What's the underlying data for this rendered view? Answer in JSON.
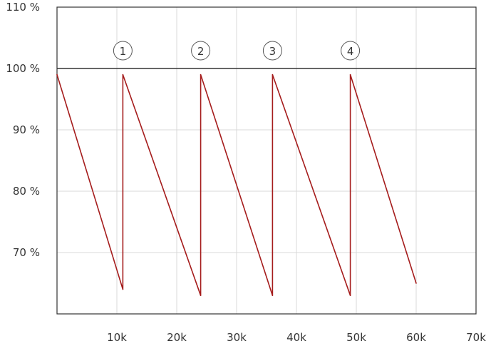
{
  "chart_data": {
    "type": "line",
    "title": "",
    "xlabel": "",
    "ylabel": "",
    "xlim": [
      0,
      70000
    ],
    "ylim": [
      60,
      110
    ],
    "x_ticks": [
      {
        "value": 10000,
        "label": "10k"
      },
      {
        "value": 20000,
        "label": "20k"
      },
      {
        "value": 30000,
        "label": "30k"
      },
      {
        "value": 40000,
        "label": "40k"
      },
      {
        "value": 50000,
        "label": "50k"
      },
      {
        "value": 60000,
        "label": "60k"
      },
      {
        "value": 70000,
        "label": "70k"
      }
    ],
    "y_ticks": [
      {
        "value": 70,
        "label": "70 %"
      },
      {
        "value": 80,
        "label": "80 %"
      },
      {
        "value": 90,
        "label": "90 %"
      },
      {
        "value": 100,
        "label": "100 %"
      },
      {
        "value": 110,
        "label": "110 %"
      }
    ],
    "grid": true,
    "reference_line": {
      "y": 100
    },
    "series": [
      {
        "color": "#a51c1c",
        "points": [
          {
            "x": 0,
            "y": 99
          },
          {
            "x": 11000,
            "y": 64
          },
          {
            "x": 11000,
            "y": 99
          },
          {
            "x": 24000,
            "y": 63
          },
          {
            "x": 24000,
            "y": 99
          },
          {
            "x": 36000,
            "y": 63
          },
          {
            "x": 36000,
            "y": 99
          },
          {
            "x": 49000,
            "y": 63
          },
          {
            "x": 49000,
            "y": 99
          },
          {
            "x": 60000,
            "y": 65
          }
        ]
      }
    ],
    "markers": [
      {
        "label": "1",
        "x": 11000
      },
      {
        "label": "2",
        "x": 24000
      },
      {
        "label": "3",
        "x": 36000
      },
      {
        "label": "4",
        "x": 49000
      }
    ],
    "colors": {
      "grid": "#d9d9d9",
      "axis": "#333333",
      "reference": "#333333",
      "marker_stroke": "#555555"
    }
  }
}
